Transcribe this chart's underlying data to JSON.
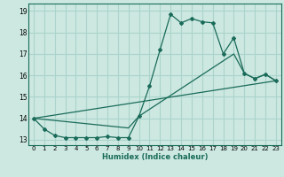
{
  "title": "",
  "xlabel": "Humidex (Indice chaleur)",
  "bg_color": "#cce8e0",
  "grid_color": "#aad4cc",
  "line_color": "#1a6b5a",
  "xlim": [
    -0.5,
    23.5
  ],
  "ylim": [
    12.75,
    19.35
  ],
  "xticks": [
    0,
    1,
    2,
    3,
    4,
    5,
    6,
    7,
    8,
    9,
    10,
    11,
    12,
    13,
    14,
    15,
    16,
    17,
    18,
    19,
    20,
    21,
    22,
    23
  ],
  "yticks": [
    13,
    14,
    15,
    16,
    17,
    18,
    19
  ],
  "line1_x": [
    0,
    1,
    2,
    3,
    4,
    5,
    6,
    7,
    8,
    9,
    10,
    11,
    12,
    13,
    14,
    15,
    16,
    17,
    18,
    19,
    20,
    21,
    22,
    23
  ],
  "line1_y": [
    14.0,
    13.5,
    13.2,
    13.1,
    13.1,
    13.1,
    13.1,
    13.15,
    13.1,
    13.1,
    14.1,
    15.5,
    17.2,
    18.85,
    18.45,
    18.65,
    18.5,
    18.45,
    17.0,
    17.75,
    16.1,
    15.85,
    16.05,
    15.75
  ],
  "line2_x": [
    0,
    23
  ],
  "line2_y": [
    14.0,
    15.75
  ],
  "line3_x": [
    0,
    9,
    10,
    19,
    20,
    21,
    22,
    23
  ],
  "line3_y": [
    14.0,
    13.55,
    14.1,
    17.0,
    16.1,
    15.85,
    16.05,
    15.75
  ]
}
